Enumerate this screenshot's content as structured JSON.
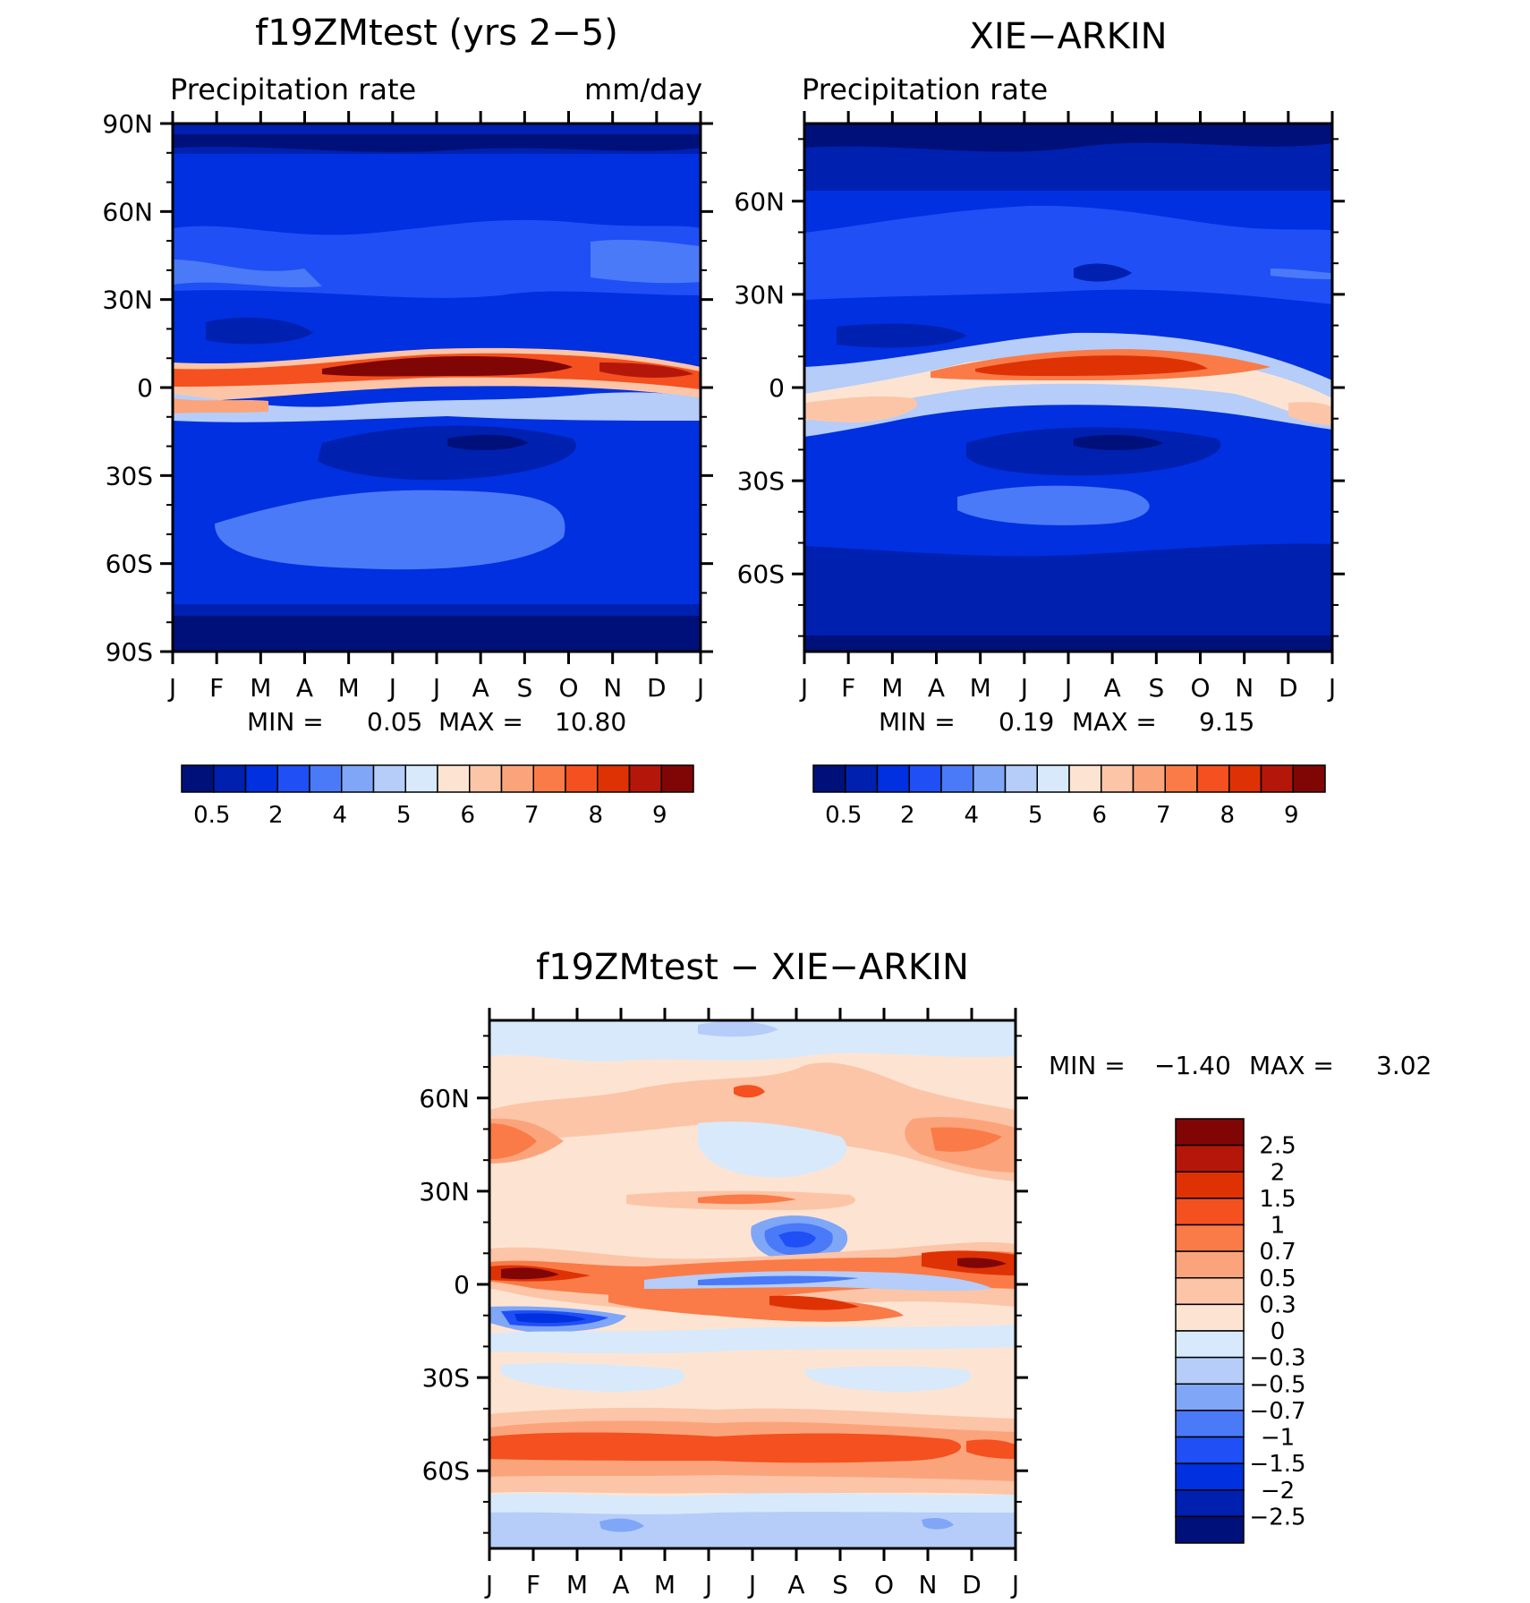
{
  "chart_data": [
    {
      "type": "heatmap",
      "title": "f19ZMtest (yrs 2−5)",
      "subtitle_left": "Precipitation rate",
      "subtitle_right": "mm/day",
      "x_ticks": [
        "J",
        "F",
        "M",
        "A",
        "M",
        "J",
        "J",
        "A",
        "S",
        "O",
        "N",
        "D",
        "J"
      ],
      "y_ticks": [
        "90N",
        "60N",
        "30N",
        "0",
        "30S",
        "60S",
        "90S"
      ],
      "y_tick_values": [
        90,
        60,
        30,
        0,
        -30,
        -60,
        -90
      ],
      "ylim": [
        -90,
        90
      ],
      "min_label": "MIN =",
      "min_value": "0.05",
      "max_label": "MAX =",
      "max_value": "10.80",
      "colorbar_labels": [
        "0.5",
        "2",
        "4",
        "5",
        "6",
        "7",
        "8",
        "9"
      ],
      "colors": [
        "#00107a",
        "#0020b0",
        "#0030e0",
        "#1f4ff5",
        "#4a7af7",
        "#80a6f7",
        "#b5cdf8",
        "#d8e9fb",
        "#fde4d2",
        "#fcc5a8",
        "#fba47c",
        "#fa7b47",
        "#f5501f",
        "#de3205",
        "#b4170a",
        "#800606"
      ]
    },
    {
      "type": "heatmap",
      "title": "XIE−ARKIN",
      "subtitle_left": "Precipitation rate",
      "x_ticks": [
        "J",
        "F",
        "M",
        "A",
        "M",
        "J",
        "J",
        "A",
        "S",
        "O",
        "N",
        "D",
        "J"
      ],
      "y_ticks": [
        "60N",
        "30N",
        "0",
        "30S",
        "60S"
      ],
      "y_tick_values": [
        60,
        30,
        0,
        -30,
        -60
      ],
      "ylim": [
        -85,
        85
      ],
      "min_label": "MIN =",
      "min_value": "0.19",
      "max_label": "MAX =",
      "max_value": "9.15",
      "colorbar_labels": [
        "0.5",
        "2",
        "4",
        "5",
        "6",
        "7",
        "8",
        "9"
      ]
    },
    {
      "type": "heatmap",
      "title": "f19ZMtest − XIE−ARKIN",
      "x_ticks": [
        "J",
        "F",
        "M",
        "A",
        "M",
        "J",
        "J",
        "A",
        "S",
        "O",
        "N",
        "D",
        "J"
      ],
      "y_ticks": [
        "60N",
        "30N",
        "0",
        "30S",
        "60S"
      ],
      "y_tick_values": [
        60,
        30,
        0,
        -30,
        -60
      ],
      "ylim": [
        -85,
        85
      ],
      "min_label": "MIN =",
      "min_value": "−1.40",
      "max_label": "MAX =",
      "max_value": "3.02",
      "colorbar_labels": [
        "2.5",
        "2",
        "1.5",
        "1",
        "0.7",
        "0.5",
        "0.3",
        "0",
        "−0.3",
        "−0.5",
        "−0.7",
        "−1",
        "−1.5",
        "−2",
        "−2.5"
      ],
      "colors": [
        "#800606",
        "#b4170a",
        "#de3205",
        "#f5501f",
        "#fa7b47",
        "#fba47c",
        "#fcc5a8",
        "#fde4d2",
        "#d8e9fb",
        "#b5cdf8",
        "#80a6f7",
        "#4a7af7",
        "#1f4ff5",
        "#0030e0",
        "#0020b0",
        "#00107a"
      ]
    }
  ]
}
